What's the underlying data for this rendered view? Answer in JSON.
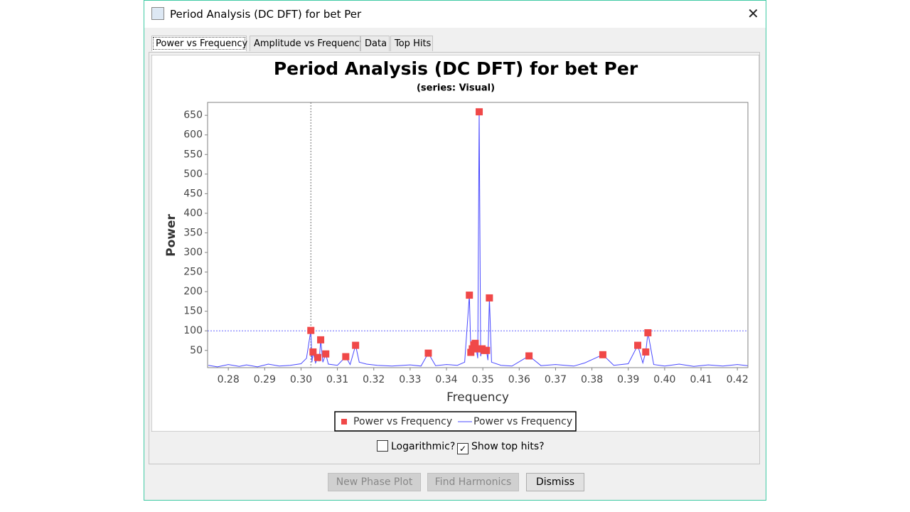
{
  "window": {
    "title": "Period Analysis (DC DFT) for bet Per"
  },
  "tabs": [
    "Power vs Frequency",
    "Amplitude vs Frequency",
    "Data",
    "Top Hits"
  ],
  "chart_data": {
    "type": "line",
    "title": "Period Analysis (DC DFT) for bet Per",
    "subtitle": "(series: Visual)",
    "x_label": "Frequency",
    "y_label": "Power",
    "xlim": [
      0.2743,
      0.4229
    ],
    "ylim": [
      6,
      683
    ],
    "xticks": [
      0.28,
      0.29,
      {
        "value": 0.3,
        "label": "0.30"
      },
      0.31,
      0.32,
      0.33,
      0.34,
      0.35,
      0.36,
      0.37,
      0.38,
      0.39,
      {
        "value": 0.4,
        "label": "0.40"
      },
      0.41,
      0.42
    ],
    "yticks": [
      50,
      100,
      150,
      200,
      250,
      300,
      350,
      400,
      450,
      500,
      550,
      600,
      650
    ],
    "crosshair": {
      "x": 0.3027,
      "y": 100
    },
    "series": [
      {
        "name": "Power vs Frequency",
        "type": "scatter",
        "color": "#f04848",
        "x": [
          0.3027,
          0.3033,
          0.3046,
          0.3054,
          0.3068,
          0.3123,
          0.315,
          0.335,
          0.3463,
          0.3467,
          0.3471,
          0.3475,
          0.3479,
          0.3482,
          0.349,
          0.3498,
          0.3504,
          0.351,
          0.3518,
          0.3627,
          0.383,
          0.3926,
          0.3948,
          0.3954
        ],
        "values": [
          101,
          46,
          32,
          77,
          41,
          34,
          63,
          43,
          191,
          45,
          54,
          64,
          68,
          54,
          659,
          54,
          50,
          50,
          184,
          36,
          39,
          63,
          46,
          95
        ]
      },
      {
        "name": "Power vs Frequency",
        "type": "line",
        "color": "#4848ff",
        "x": [
          0.2745,
          0.277,
          0.28,
          0.283,
          0.285,
          0.288,
          0.291,
          0.294,
          0.297,
          0.3,
          0.3015,
          0.3027,
          0.303,
          0.3033,
          0.304,
          0.3046,
          0.305,
          0.3054,
          0.306,
          0.3068,
          0.3075,
          0.31,
          0.3123,
          0.3135,
          0.315,
          0.316,
          0.318,
          0.321,
          0.325,
          0.33,
          0.333,
          0.335,
          0.337,
          0.34,
          0.343,
          0.345,
          0.3463,
          0.3467,
          0.3471,
          0.3475,
          0.3479,
          0.3482,
          0.3486,
          0.349,
          0.3494,
          0.3498,
          0.3504,
          0.351,
          0.3514,
          0.3518,
          0.3524,
          0.355,
          0.358,
          0.3627,
          0.366,
          0.37,
          0.375,
          0.378,
          0.383,
          0.386,
          0.39,
          0.3926,
          0.394,
          0.3948,
          0.3954,
          0.397,
          0.4,
          0.404,
          0.408,
          0.412,
          0.416,
          0.42,
          0.4228
        ],
        "values": [
          12,
          8,
          14,
          9,
          13,
          8,
          15,
          10,
          12,
          16,
          30,
          101,
          20,
          46,
          18,
          32,
          22,
          77,
          20,
          41,
          15,
          12,
          34,
          14,
          63,
          20,
          15,
          12,
          10,
          13,
          10,
          43,
          11,
          14,
          12,
          20,
          191,
          45,
          54,
          64,
          68,
          54,
          30,
          659,
          35,
          54,
          50,
          50,
          25,
          184,
          20,
          12,
          10,
          36,
          11,
          14,
          10,
          18,
          39,
          12,
          16,
          63,
          18,
          46,
          95,
          14,
          10,
          15,
          9,
          13,
          10,
          14,
          11
        ]
      }
    ]
  },
  "controls": {
    "checkboxes": [
      {
        "label": "Logarithmic?",
        "checked": false
      },
      {
        "label": "Show top hits?",
        "checked": true
      }
    ],
    "buttons": [
      {
        "label": "New Phase Plot",
        "enabled": false
      },
      {
        "label": "Find Harmonics",
        "enabled": false
      },
      {
        "label": "Dismiss",
        "enabled": true
      }
    ]
  }
}
